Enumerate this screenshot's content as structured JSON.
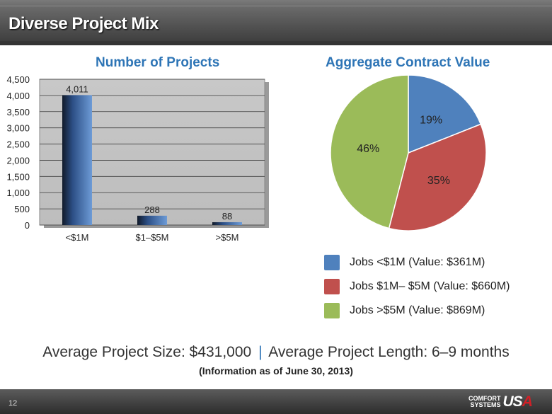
{
  "page": {
    "title": "Diverse Project Mix",
    "page_number": "12"
  },
  "summary": {
    "left": "Average Project Size: $431,000",
    "separator": "|",
    "right": "Average Project Length: 6–9 months",
    "note": "(Information as of June 30, 2013)"
  },
  "logo": {
    "line1": "COMFORT",
    "line2": "SYSTEMS",
    "mark_left": "US",
    "mark_right": "A"
  },
  "colors": {
    "bar_blue": "#4a7ec4",
    "pie_blue": "#4f81bd",
    "pie_red": "#c0504d",
    "pie_green": "#9bbb59",
    "title_blue": "#2e75b6"
  },
  "chart_data": [
    {
      "type": "bar",
      "title": "Number of Projects",
      "categories": [
        "<$1M",
        "$1–$5M",
        ">$5M"
      ],
      "values": [
        4011,
        288,
        88
      ],
      "data_labels": [
        "4,011",
        "288",
        "88"
      ],
      "ylim": [
        0,
        4500
      ],
      "y_ticks": [
        "0",
        "500",
        "1,000",
        "1,500",
        "2,000",
        "2,500",
        "3,000",
        "3,500",
        "4,000",
        "4,500"
      ],
      "y_tick_values": [
        0,
        500,
        1000,
        1500,
        2000,
        2500,
        3000,
        3500,
        4000,
        4500
      ],
      "grid": true
    },
    {
      "type": "pie",
      "title": "Aggregate Contract Value",
      "slices": [
        {
          "label": "19%",
          "value": 19,
          "color": "#4f81bd",
          "legend": "Jobs <$1M (Value: $361M)"
        },
        {
          "label": "35%",
          "value": 35,
          "color": "#c0504d",
          "legend": "Jobs $1M– $5M (Value: $660M)"
        },
        {
          "label": "46%",
          "value": 46,
          "color": "#9bbb59",
          "legend": "Jobs >$5M (Value: $869M)"
        }
      ],
      "legend_position": "bottom"
    }
  ]
}
